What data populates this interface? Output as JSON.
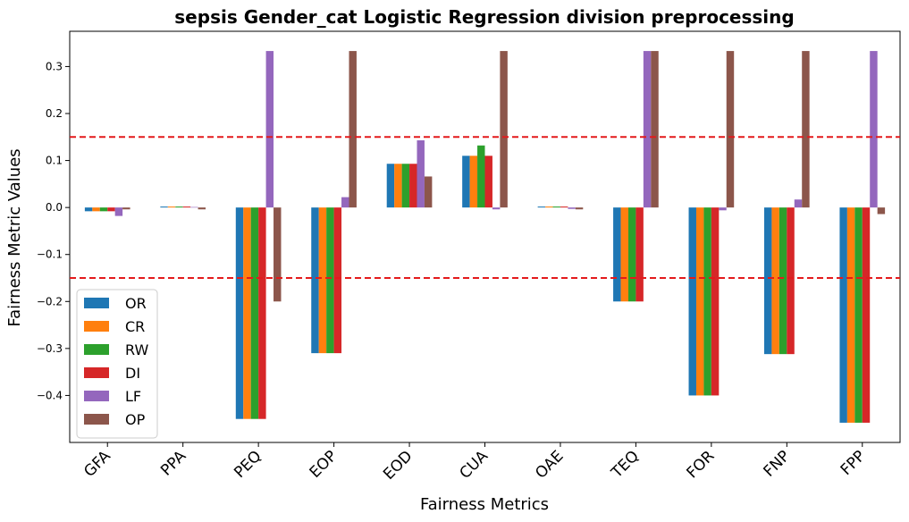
{
  "chart_data": {
    "type": "bar",
    "title": "sepsis Gender_cat Logistic Regression division preprocessing",
    "xlabel": "Fairness Metrics",
    "ylabel": "Fairness Metric Values",
    "ylim": [
      -0.5,
      0.375
    ],
    "yticks": [
      -0.4,
      -0.3,
      -0.2,
      -0.1,
      0.0,
      0.1,
      0.2,
      0.3
    ],
    "ytick_labels": [
      "−0.4",
      "−0.3",
      "−0.2",
      "−0.1",
      "0.0",
      "0.1",
      "0.2",
      "0.3"
    ],
    "categories": [
      "GFA",
      "PPA",
      "PEQ",
      "EOP",
      "EOD",
      "CUA",
      "OAE",
      "TEQ",
      "FOR",
      "FNP",
      "FPP"
    ],
    "series": [
      {
        "name": "OR",
        "color": "#1f77b4",
        "values": [
          -0.008,
          0.002,
          -0.45,
          -0.31,
          0.093,
          0.11,
          0.002,
          -0.2,
          -0.4,
          -0.312,
          -0.458
        ]
      },
      {
        "name": "CR",
        "color": "#ff7f0e",
        "values": [
          -0.008,
          0.002,
          -0.45,
          -0.31,
          0.093,
          0.11,
          0.002,
          -0.2,
          -0.4,
          -0.312,
          -0.458
        ]
      },
      {
        "name": "RW",
        "color": "#2ca02c",
        "values": [
          -0.008,
          0.002,
          -0.45,
          -0.31,
          0.093,
          0.132,
          0.002,
          -0.2,
          -0.4,
          -0.312,
          -0.458
        ]
      },
      {
        "name": "DI",
        "color": "#d62728",
        "values": [
          -0.008,
          0.002,
          -0.45,
          -0.31,
          0.093,
          0.11,
          0.002,
          -0.2,
          -0.4,
          -0.312,
          -0.458
        ]
      },
      {
        "name": "LF",
        "color": "#9467bd",
        "values": [
          -0.018,
          0.001,
          0.333,
          0.022,
          0.143,
          -0.004,
          -0.003,
          0.333,
          -0.006,
          0.017,
          0.333
        ]
      },
      {
        "name": "OP",
        "color": "#8c564b",
        "values": [
          -0.004,
          -0.004,
          -0.2,
          0.333,
          0.066,
          0.333,
          -0.004,
          0.333,
          0.333,
          0.333,
          -0.014
        ]
      }
    ],
    "reference_lines": [
      0.15,
      -0.15
    ],
    "reference_line_color": "#e31a1c",
    "grid": false,
    "legend_position": "lower-left"
  }
}
